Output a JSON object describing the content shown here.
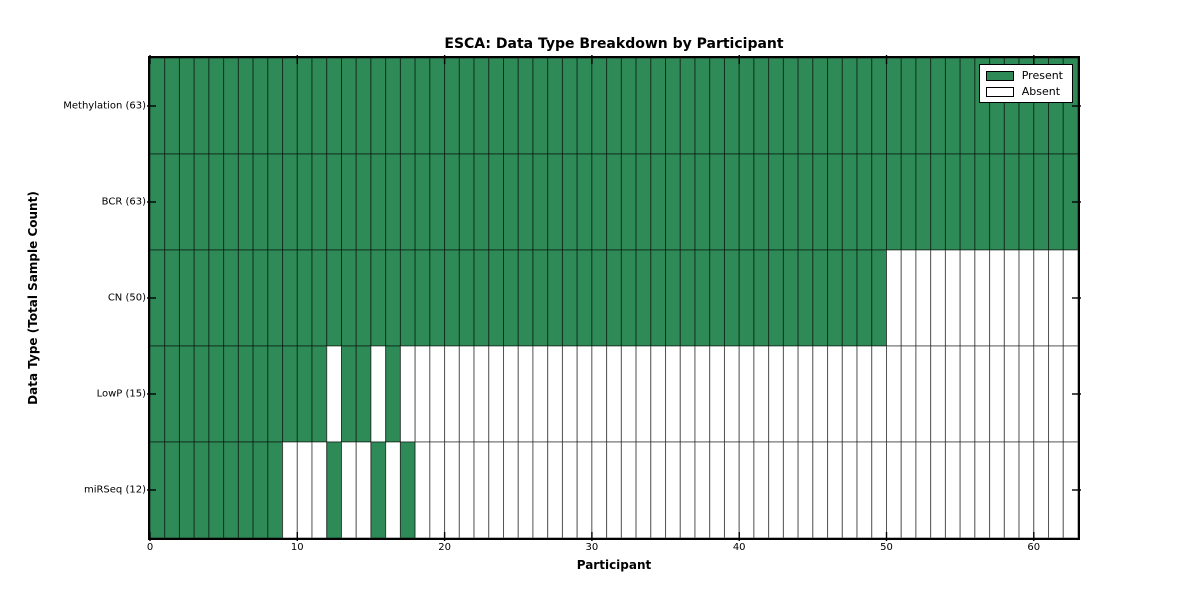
{
  "figure": {
    "title": "ESCA: Data Type Breakdown by Participant",
    "xlabel": "Participant",
    "ylabel": "Data Type (Total Sample Count)"
  },
  "legend": {
    "items": [
      {
        "label": "Present",
        "color": "#2e8b57"
      },
      {
        "label": "Absent",
        "color": "#ffffff"
      }
    ]
  },
  "chart_data": {
    "type": "heatmap",
    "title": "ESCA: Data Type Breakdown by Participant",
    "xlabel": "Participant",
    "ylabel": "Data Type (Total Sample Count)",
    "n_participants": 63,
    "x_ticks": [
      0,
      10,
      20,
      30,
      40,
      50,
      60
    ],
    "x_range": [
      0,
      63
    ],
    "grid": false,
    "legend_position": "upper right",
    "legend_entries": [
      "Present",
      "Absent"
    ],
    "colors": {
      "present": "#2e8b57",
      "absent": "#ffffff",
      "cell_edge": "#000000"
    },
    "rows": [
      {
        "label": "Methylation (63)",
        "total": 63,
        "mask": [
          1,
          1,
          1,
          1,
          1,
          1,
          1,
          1,
          1,
          1,
          1,
          1,
          1,
          1,
          1,
          1,
          1,
          1,
          1,
          1,
          1,
          1,
          1,
          1,
          1,
          1,
          1,
          1,
          1,
          1,
          1,
          1,
          1,
          1,
          1,
          1,
          1,
          1,
          1,
          1,
          1,
          1,
          1,
          1,
          1,
          1,
          1,
          1,
          1,
          1,
          1,
          1,
          1,
          1,
          1,
          1,
          1,
          1,
          1,
          1,
          1,
          1,
          1
        ]
      },
      {
        "label": "BCR (63)",
        "total": 63,
        "mask": [
          1,
          1,
          1,
          1,
          1,
          1,
          1,
          1,
          1,
          1,
          1,
          1,
          1,
          1,
          1,
          1,
          1,
          1,
          1,
          1,
          1,
          1,
          1,
          1,
          1,
          1,
          1,
          1,
          1,
          1,
          1,
          1,
          1,
          1,
          1,
          1,
          1,
          1,
          1,
          1,
          1,
          1,
          1,
          1,
          1,
          1,
          1,
          1,
          1,
          1,
          1,
          1,
          1,
          1,
          1,
          1,
          1,
          1,
          1,
          1,
          1,
          1,
          1
        ]
      },
      {
        "label": "CN (50)",
        "total": 50,
        "mask": [
          1,
          1,
          1,
          1,
          1,
          1,
          1,
          1,
          1,
          1,
          1,
          1,
          1,
          1,
          1,
          1,
          1,
          1,
          1,
          1,
          1,
          1,
          1,
          1,
          1,
          1,
          1,
          1,
          1,
          1,
          1,
          1,
          1,
          1,
          1,
          1,
          1,
          1,
          1,
          1,
          1,
          1,
          1,
          1,
          1,
          1,
          1,
          1,
          1,
          1,
          0,
          0,
          0,
          0,
          0,
          0,
          0,
          0,
          0,
          0,
          0,
          0,
          0
        ]
      },
      {
        "label": "LowP (15)",
        "total": 15,
        "mask": [
          1,
          1,
          1,
          1,
          1,
          1,
          1,
          1,
          1,
          1,
          1,
          1,
          0,
          1,
          1,
          0,
          1,
          0,
          0,
          0,
          0,
          0,
          0,
          0,
          0,
          0,
          0,
          0,
          0,
          0,
          0,
          0,
          0,
          0,
          0,
          0,
          0,
          0,
          0,
          0,
          0,
          0,
          0,
          0,
          0,
          0,
          0,
          0,
          0,
          0,
          0,
          0,
          0,
          0,
          0,
          0,
          0,
          0,
          0,
          0,
          0,
          0,
          0
        ]
      },
      {
        "label": "miRSeq (12)",
        "total": 12,
        "mask": [
          1,
          1,
          1,
          1,
          1,
          1,
          1,
          1,
          1,
          0,
          0,
          0,
          1,
          0,
          0,
          1,
          0,
          1,
          0,
          0,
          0,
          0,
          0,
          0,
          0,
          0,
          0,
          0,
          0,
          0,
          0,
          0,
          0,
          0,
          0,
          0,
          0,
          0,
          0,
          0,
          0,
          0,
          0,
          0,
          0,
          0,
          0,
          0,
          0,
          0,
          0,
          0,
          0,
          0,
          0,
          0,
          0,
          0,
          0,
          0,
          0,
          0,
          0
        ]
      }
    ]
  }
}
